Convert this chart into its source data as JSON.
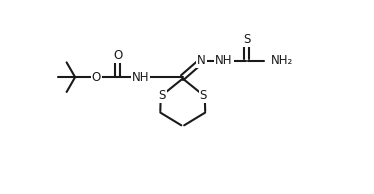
{
  "bg_color": "#ffffff",
  "line_color": "#1a1a1a",
  "line_width": 1.5,
  "font_size": 8.5,
  "figsize": [
    3.74,
    1.94
  ],
  "dpi": 100,
  "xlim": [
    0,
    10.0
  ],
  "ylim": [
    2.2,
    9.0
  ]
}
